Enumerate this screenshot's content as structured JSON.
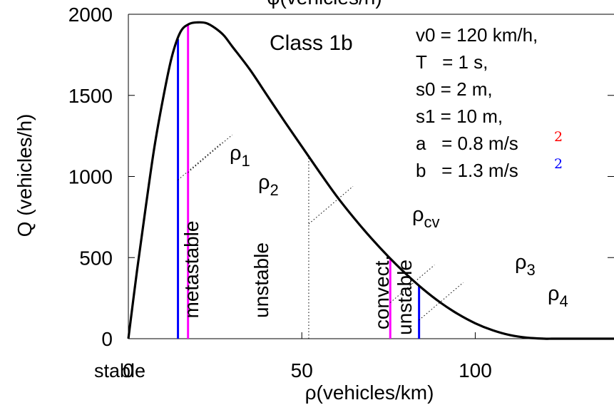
{
  "chart_data": {
    "type": "line",
    "title": "Class 1b",
    "xlabel": "ρ(vehicles/km)",
    "ylabel": "Q (vehicles/h)",
    "top_partial_label": "φ(vehicles/h)",
    "xlim": [
      0,
      140
    ],
    "ylim": [
      0,
      2000
    ],
    "x_ticks": [
      0,
      50,
      100
    ],
    "x_tick_labels": [
      "0",
      "50",
      "100"
    ],
    "y_ticks": [
      0,
      500,
      1000,
      1500,
      2000
    ],
    "y_tick_labels": [
      "0",
      "500",
      "1000",
      "1500",
      "2000"
    ],
    "grid": false,
    "series": [
      {
        "color": "#000000",
        "x": [
          0,
          2.5,
          5,
          7.5,
          10,
          12.5,
          15,
          17.5,
          20,
          22.5,
          25,
          27.5,
          30,
          35,
          40,
          45,
          50,
          55,
          60,
          65,
          70,
          75,
          80,
          85,
          90,
          95,
          100,
          105,
          110,
          115,
          120,
          122,
          125,
          130,
          140
        ],
        "y": [
          0,
          420,
          810,
          1180,
          1480,
          1735,
          1890,
          1940,
          1950,
          1945,
          1915,
          1870,
          1800,
          1660,
          1500,
          1340,
          1185,
          1030,
          880,
          745,
          620,
          505,
          400,
          305,
          222,
          152,
          95,
          52,
          22,
          6,
          0,
          0,
          0,
          0,
          0
        ]
      }
    ],
    "parameters": [
      {
        "text": "v0 = 120 km/h,",
        "color": "#0000ff"
      },
      {
        "text": "T   = 1 s,",
        "color": "#0000ff"
      },
      {
        "text": "s0 = 2 m,",
        "color": "#0000ff"
      },
      {
        "text": "s1 = 10 m,",
        "color": "#ff0000"
      },
      {
        "text": "a   = 0.8 m/s",
        "sup": "2",
        "color": "#ff0000"
      },
      {
        "text": "b   = 1.3 m/s",
        "sup": "2",
        "color": "#0000ff"
      }
    ],
    "critical_densities": [
      {
        "name": "ρ",
        "sub": "1",
        "x": 14.3,
        "color": "#0000ff",
        "style": "solid"
      },
      {
        "name": "ρ",
        "sub": "2",
        "x": 17.2,
        "color": "#ff00ff",
        "style": "solid"
      },
      {
        "name": "ρ",
        "sub": "cv",
        "x": 52,
        "color": "#000000",
        "style": "dotted"
      },
      {
        "name": "ρ",
        "sub": "3",
        "x": 75.5,
        "color": "#ff00ff",
        "style": "solid"
      },
      {
        "name": "ρ",
        "sub": "4",
        "x": 83.8,
        "color": "#0000ff",
        "style": "solid"
      }
    ],
    "region_labels": [
      "stable",
      "metastable",
      "unstable",
      "convect.",
      "unstable"
    ]
  }
}
